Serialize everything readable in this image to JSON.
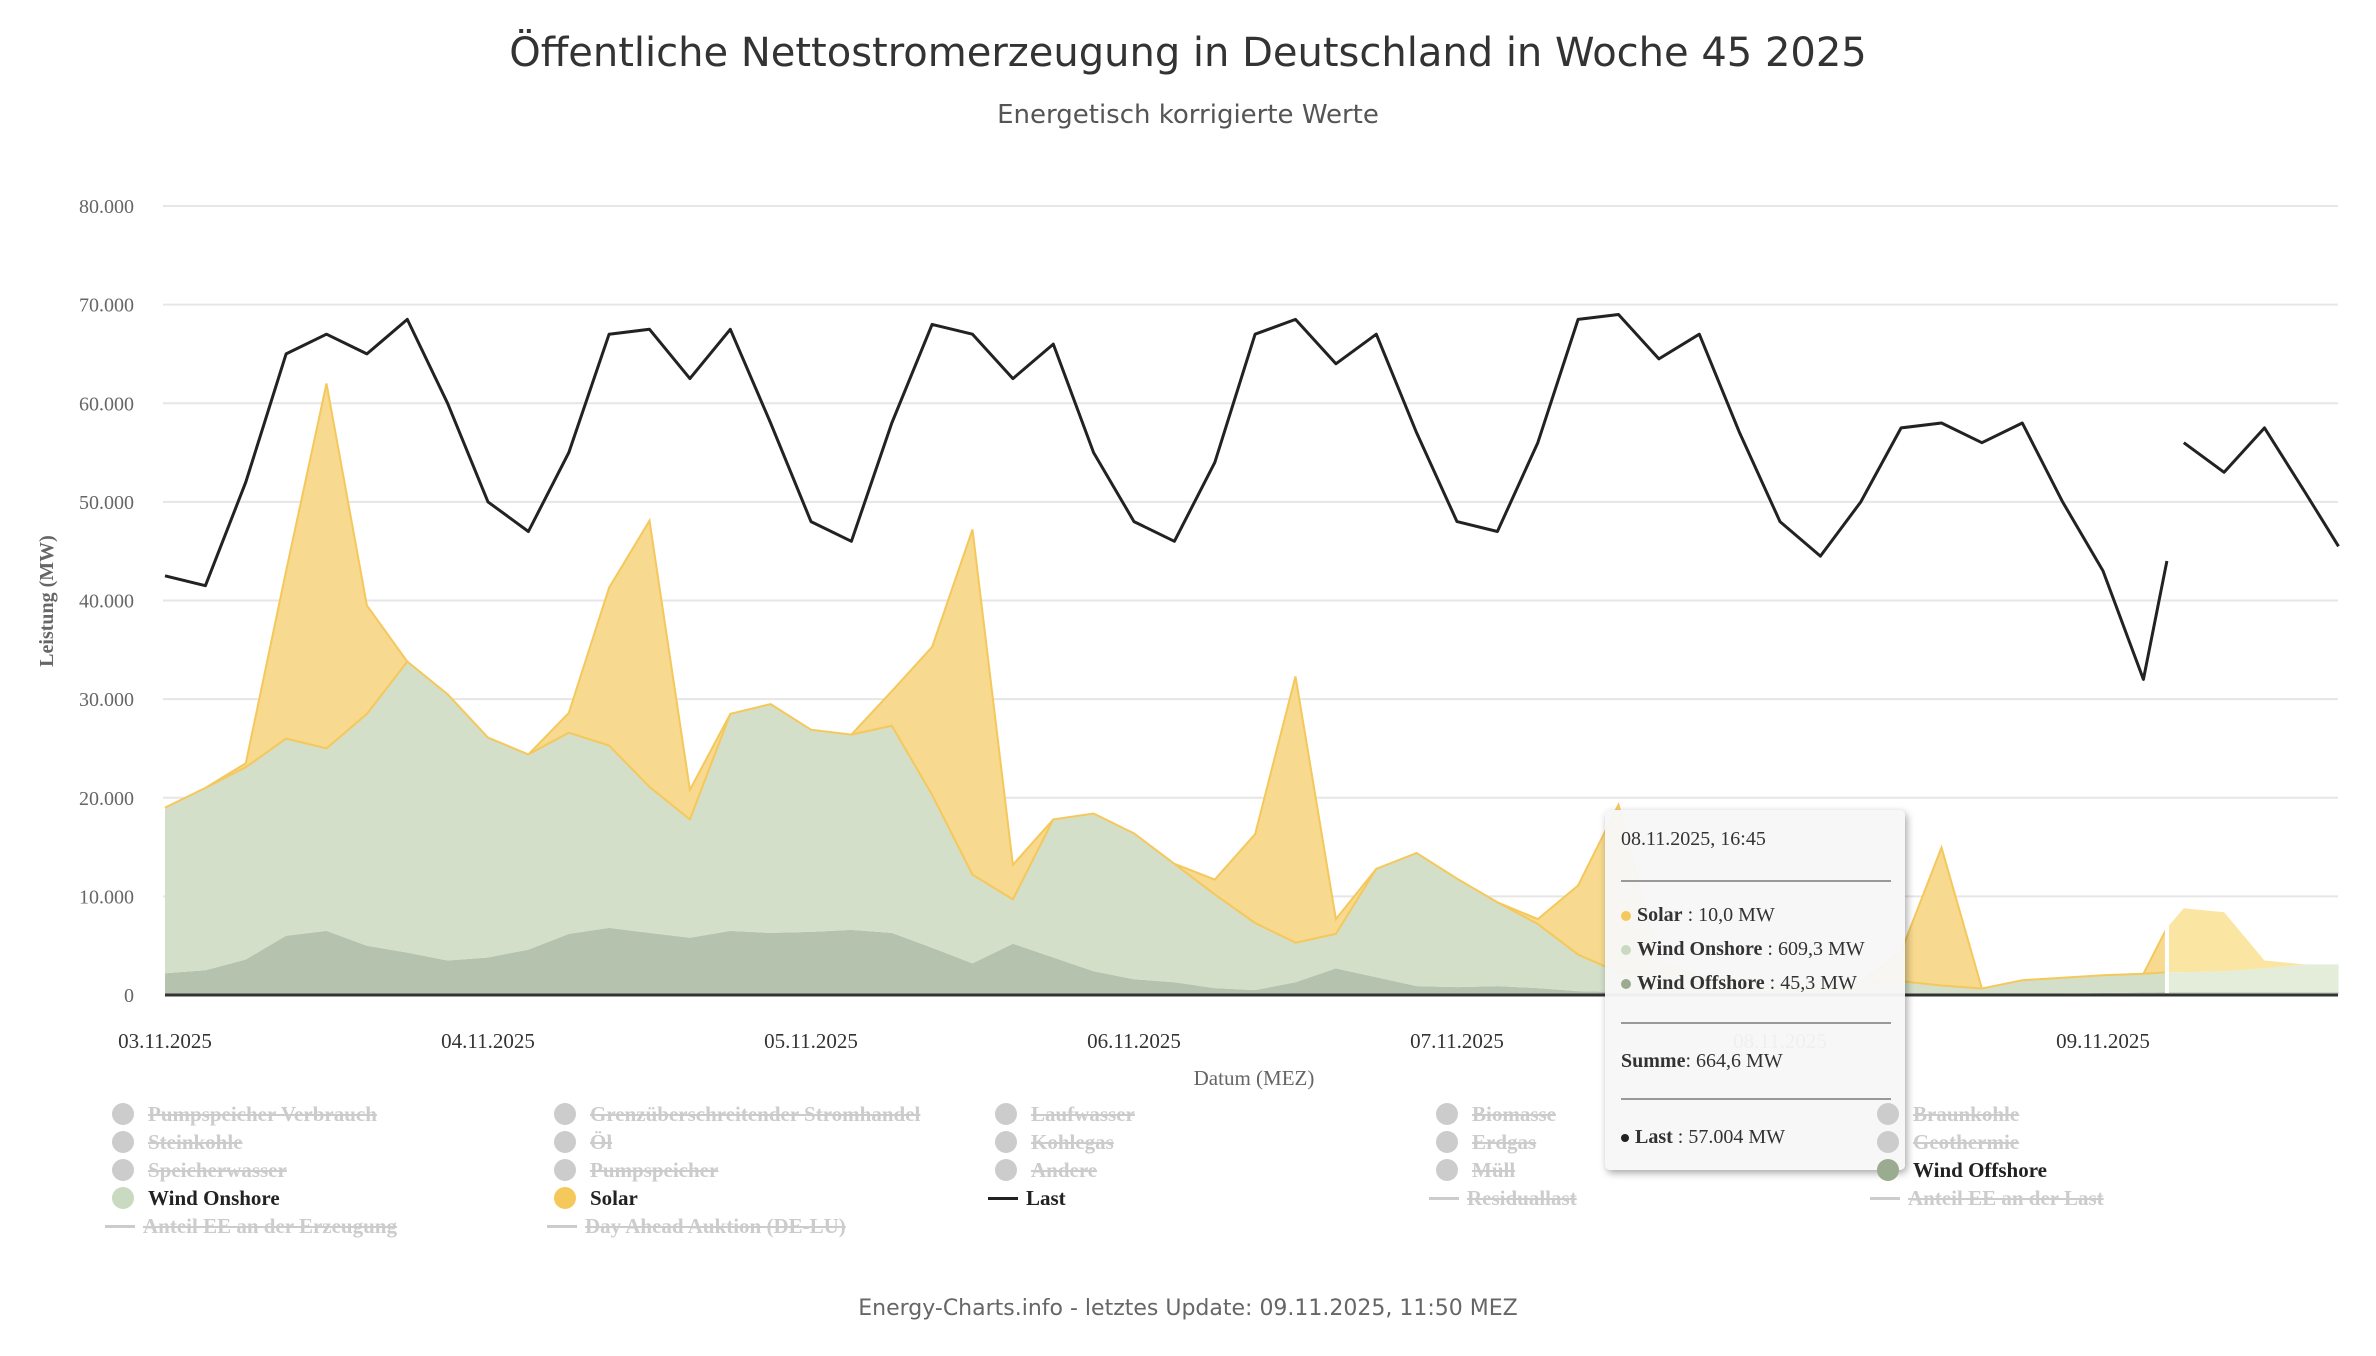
{
  "title": "Öffentliche Nettostromerzeugung in Deutschland in Woche 45 2025",
  "subtitle": "Energetisch korrigierte Werte",
  "footer": "Energy-Charts.info - letztes Update: 09.11.2025, 11:50 MEZ",
  "tooltip": {
    "date": "08.11.2025, 16:45",
    "rows": [
      {
        "name": "Solar",
        "value": "10,0 MW",
        "color": "#f5c85c"
      },
      {
        "name": "Wind Onshore",
        "value": "609,3 MW",
        "color": "#c9dac0"
      },
      {
        "name": "Wind Offshore",
        "value": "45,3 MW",
        "color": "#9aab8f"
      }
    ],
    "sum_label": "Summe",
    "sum_value": "664,6 MW",
    "last_name": "Last",
    "last_value": "57.004 MW",
    "last_color": "#222222",
    "hidden_axis_label": "08.11.2025"
  },
  "legend": [
    {
      "label": "Pumpspeicher Verbrauch",
      "type": "dot",
      "active": false,
      "color": "#cccccc"
    },
    {
      "label": "Grenzüberschreitender Stromhandel",
      "type": "dot",
      "active": false,
      "color": "#cccccc"
    },
    {
      "label": "Laufwasser",
      "type": "dot",
      "active": false,
      "color": "#cccccc"
    },
    {
      "label": "Biomasse",
      "type": "dot",
      "active": false,
      "color": "#cccccc"
    },
    {
      "label": "Braunkohle",
      "type": "dot",
      "active": false,
      "color": "#cccccc"
    },
    {
      "label": "Steinkohle",
      "type": "dot",
      "active": false,
      "color": "#cccccc"
    },
    {
      "label": "Öl",
      "type": "dot",
      "active": false,
      "color": "#cccccc"
    },
    {
      "label": "Kohlegas",
      "type": "dot",
      "active": false,
      "color": "#cccccc"
    },
    {
      "label": "Erdgas",
      "type": "dot",
      "active": false,
      "color": "#cccccc"
    },
    {
      "label": "Geothermie",
      "type": "dot",
      "active": false,
      "color": "#cccccc"
    },
    {
      "label": "Speicherwasser",
      "type": "dot",
      "active": false,
      "color": "#cccccc"
    },
    {
      "label": "Pumpspeicher",
      "type": "dot",
      "active": false,
      "color": "#cccccc"
    },
    {
      "label": "Andere",
      "type": "dot",
      "active": false,
      "color": "#cccccc"
    },
    {
      "label": "Müll",
      "type": "dot",
      "active": false,
      "color": "#cccccc"
    },
    {
      "label": "Wind Offshore",
      "type": "dot",
      "active": true,
      "color": "#9aab8f"
    },
    {
      "label": "Wind Onshore",
      "type": "dot",
      "active": true,
      "color": "#c9dac0"
    },
    {
      "label": "Solar",
      "type": "dot",
      "active": true,
      "color": "#f5c85c"
    },
    {
      "label": "Last",
      "type": "line",
      "active": true,
      "color": "#222222"
    },
    {
      "label": "Residuallast",
      "type": "line",
      "active": false,
      "color": "#cccccc"
    },
    {
      "label": "Anteil EE an der Last",
      "type": "line",
      "active": false,
      "color": "#cccccc"
    },
    {
      "label": "Anteil EE an der Erzeugung",
      "type": "line",
      "active": false,
      "color": "#cccccc"
    },
    {
      "label": "Day Ahead Auktion (DE-LU)",
      "type": "line",
      "active": false,
      "color": "#cccccc"
    }
  ],
  "chart_data": {
    "type": "area",
    "title": "Öffentliche Nettostromerzeugung in Deutschland in Woche 45 2025",
    "subtitle": "Energetisch korrigierte Werte",
    "xlabel": "Datum (MEZ)",
    "ylabel": "Leistung (MW)",
    "ylim": [
      0,
      80000
    ],
    "yticks": [
      0,
      10000,
      20000,
      30000,
      40000,
      50000,
      60000,
      70000,
      80000
    ],
    "ytick_labels": [
      "0",
      "10.000",
      "20.000",
      "30.000",
      "40.000",
      "50.000",
      "60.000",
      "70.000",
      "80.000"
    ],
    "xticks": [
      "03.11.2025",
      "04.11.2025",
      "05.11.2025",
      "06.11.2025",
      "07.11.2025",
      "08.11.2025",
      "09.11.2025"
    ],
    "x_unit": "hours since 03.11.2025 00:00",
    "xlim": [
      0,
      161.5
    ],
    "forecast_from_hour": 148.75,
    "grid": true,
    "legend_position": "bottom",
    "stacked": true,
    "x": [
      0,
      3,
      6,
      9,
      12,
      15,
      18,
      21,
      24,
      27,
      30,
      33,
      36,
      39,
      42,
      45,
      48,
      51,
      54,
      57,
      60,
      63,
      66,
      69,
      72,
      75,
      78,
      81,
      84,
      87,
      90,
      93,
      96,
      99,
      102,
      105,
      108,
      111,
      114,
      117,
      120,
      123,
      126,
      129,
      132,
      135,
      138,
      141,
      144,
      147,
      148.75,
      150,
      153,
      156,
      159,
      161.5
    ],
    "series": [
      {
        "name": "Wind Offshore",
        "color": "#b5c2ad",
        "values": [
          2200,
          2500,
          3600,
          6000,
          6500,
          5000,
          4300,
          3500,
          3800,
          4600,
          6200,
          6800,
          6300,
          5800,
          6500,
          6300,
          6400,
          6600,
          6300,
          4800,
          3200,
          5200,
          3800,
          2400,
          1600,
          1300,
          700,
          500,
          1300,
          2700,
          1800,
          900,
          800,
          900,
          700,
          400,
          300,
          300,
          200,
          200,
          200,
          150,
          100,
          100,
          60,
          45,
          100,
          150,
          200,
          250,
          300,
          300,
          300,
          300,
          300,
          300
        ]
      },
      {
        "name": "Wind Onshore",
        "color": "#d3dfc9",
        "values": [
          16800,
          18500,
          19500,
          20000,
          18500,
          23500,
          29500,
          27000,
          22300,
          19800,
          20400,
          18500,
          14800,
          12000,
          22000,
          23200,
          20500,
          19800,
          21000,
          15500,
          9000,
          4500,
          14000,
          16000,
          14800,
          12000,
          9500,
          6800,
          4000,
          3500,
          11000,
          13500,
          11000,
          8500,
          6500,
          3700,
          2000,
          2000,
          1800,
          1200,
          700,
          600,
          1200,
          1300,
          900,
          609,
          1400,
          1600,
          1800,
          1900,
          2000,
          2000,
          2100,
          2400,
          2800,
          2800
        ]
      },
      {
        "name": "Solar",
        "color": "#f7d98f",
        "values": [
          0,
          0,
          400,
          17000,
          37000,
          11000,
          0,
          0,
          0,
          0,
          2000,
          16000,
          27000,
          3000,
          0,
          0,
          0,
          0,
          3500,
          15000,
          35000,
          3500,
          0,
          0,
          0,
          0,
          1500,
          9000,
          27000,
          1500,
          0,
          0,
          0,
          0,
          500,
          7000,
          17000,
          1000,
          0,
          0,
          0,
          0,
          0,
          3000,
          14000,
          10,
          0,
          0,
          0,
          0,
          4500,
          6500,
          6000,
          800,
          0,
          0
        ]
      },
      {
        "name": "Last",
        "type": "line",
        "color": "#222222",
        "values": [
          42500,
          41500,
          52000,
          65000,
          67000,
          65000,
          68500,
          60000,
          50000,
          47000,
          55000,
          67000,
          67500,
          62500,
          67500,
          58000,
          48000,
          46000,
          58000,
          68000,
          67000,
          62500,
          66000,
          55000,
          48000,
          46000,
          54000,
          67000,
          68500,
          64000,
          67000,
          57000,
          48000,
          47000,
          56000,
          68500,
          69000,
          64500,
          67000,
          57000,
          48000,
          44500,
          50000,
          57500,
          58000,
          56000,
          58000,
          50000,
          43000,
          32000,
          44000,
          56000,
          53000,
          57500,
          51000,
          45500
        ]
      }
    ],
    "last_gap_after_hour": 148.75,
    "hover": {
      "time": "08.11.2025, 16:45",
      "Solar": 10.0,
      "Wind Onshore": 609.3,
      "Wind Offshore": 45.3,
      "Summe": 664.6,
      "Last": 57004
    }
  }
}
